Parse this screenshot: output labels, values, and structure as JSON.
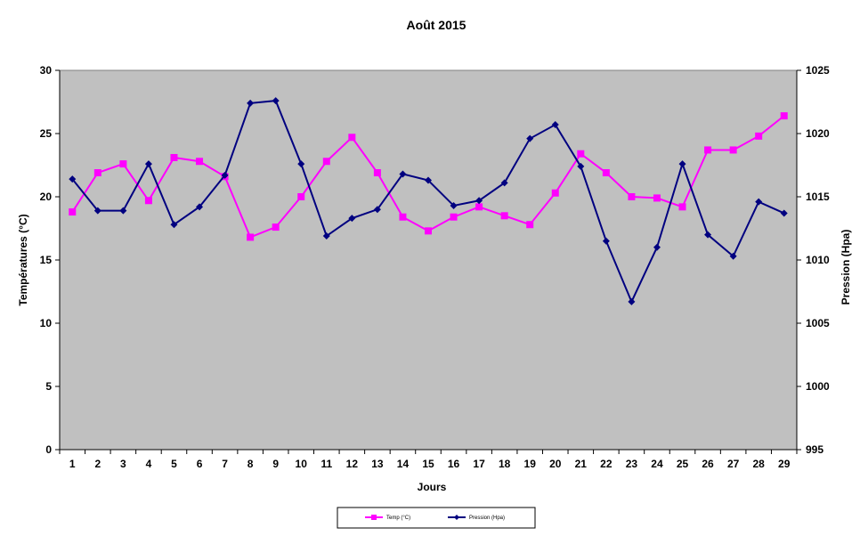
{
  "chart_data": {
    "type": "line",
    "title": "Août 2015",
    "xlabel": "Jours",
    "ylabel_left": "Températures (°C)",
    "ylabel_right": "Pression (Hpa)",
    "categories": [
      "1",
      "2",
      "3",
      "4",
      "5",
      "6",
      "7",
      "8",
      "9",
      "10",
      "11",
      "12",
      "13",
      "14",
      "15",
      "16",
      "17",
      "18",
      "19",
      "20",
      "21",
      "22",
      "23",
      "24",
      "25",
      "26",
      "27",
      "28",
      "29"
    ],
    "ylim_left": [
      0,
      30
    ],
    "yticks_left": [
      0,
      5,
      10,
      15,
      20,
      25,
      30
    ],
    "ylim_right": [
      995,
      1025
    ],
    "yticks_right": [
      995,
      1000,
      1005,
      1010,
      1015,
      1020,
      1025
    ],
    "grid": false,
    "legend_position": "bottom",
    "series": [
      {
        "name": "Temp (°C)",
        "axis": "left",
        "color": "#ff00ff",
        "marker": "square",
        "values": [
          18.8,
          21.9,
          22.6,
          19.7,
          23.1,
          22.8,
          21.6,
          16.8,
          17.6,
          20.0,
          22.8,
          24.7,
          21.9,
          18.4,
          17.3,
          18.4,
          19.2,
          18.5,
          17.8,
          20.3,
          23.4,
          21.9,
          20.0,
          19.9,
          19.2,
          23.7,
          23.7,
          24.8,
          26.4
        ]
      },
      {
        "name": "Pression (Hpa)",
        "axis": "right",
        "color": "#000080",
        "marker": "diamond",
        "values": [
          1016.4,
          1013.9,
          1013.9,
          1017.6,
          1012.8,
          1014.2,
          1016.7,
          1022.4,
          1022.6,
          1017.6,
          1011.9,
          1013.3,
          1014.0,
          1016.8,
          1016.3,
          1014.3,
          1014.7,
          1016.1,
          1019.6,
          1020.7,
          1017.4,
          1011.5,
          1006.7,
          1011.0,
          1017.6,
          1012.0,
          1010.3,
          1014.6,
          1013.7
        ]
      }
    ]
  }
}
